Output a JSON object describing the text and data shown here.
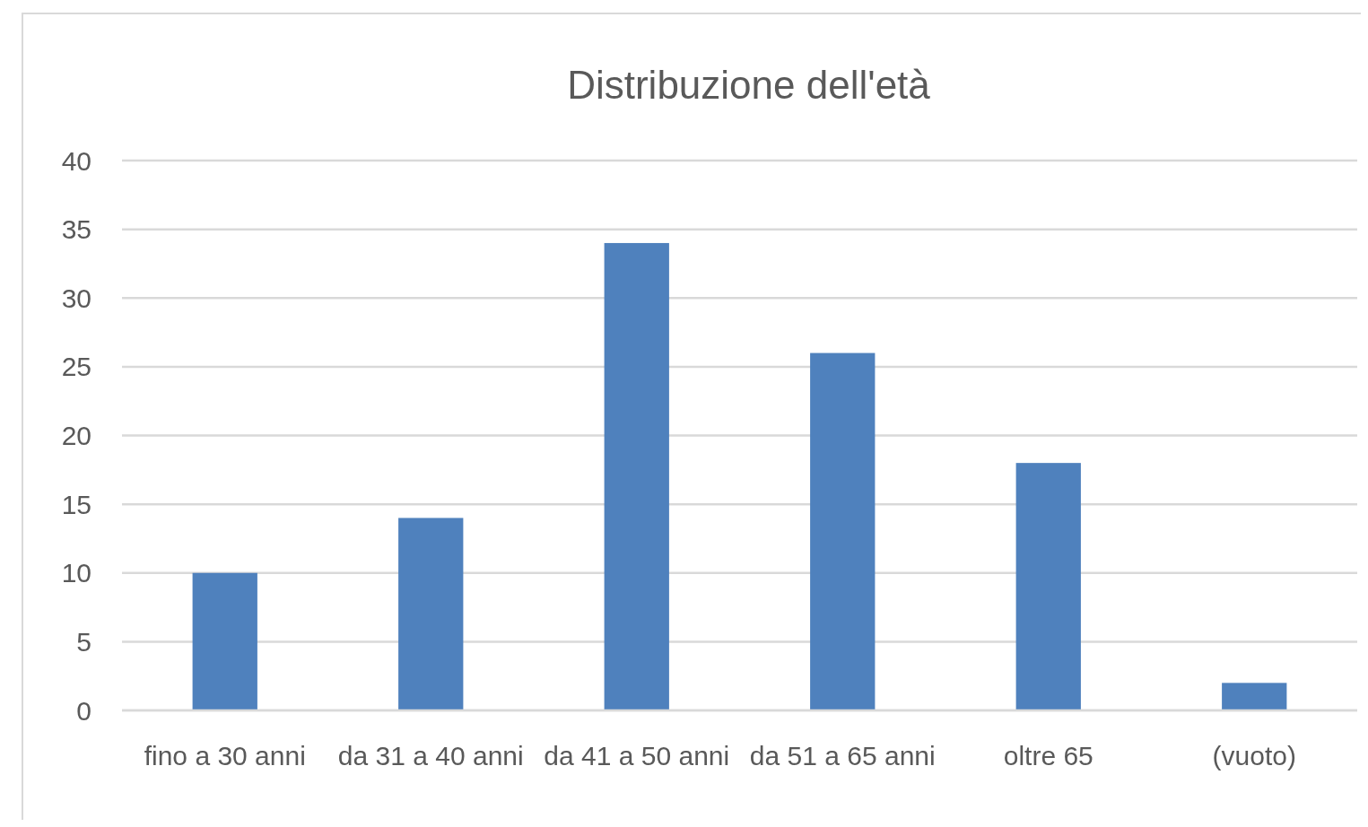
{
  "chart_data": {
    "type": "bar",
    "title": "Distribuzione dell'età",
    "categories": [
      "fino a 30 anni",
      "da 31 a 40 anni",
      "da 41 a 50 anni",
      "da 51 a 65 anni",
      "oltre 65",
      "(vuoto)"
    ],
    "values": [
      10,
      14,
      34,
      26,
      18,
      2
    ],
    "color": "#4f81bd",
    "ylim": [
      0,
      40
    ],
    "yticks": [
      0,
      5,
      10,
      15,
      20,
      25,
      30,
      35,
      40
    ],
    "grid": "y"
  }
}
